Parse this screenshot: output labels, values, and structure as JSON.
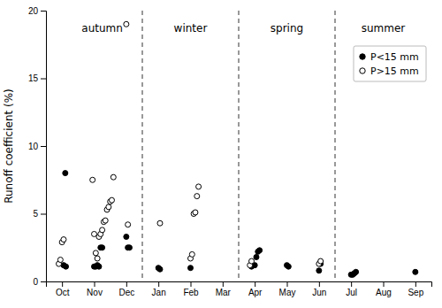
{
  "chart_data": {
    "type": "scatter",
    "ylabel": "Runoff coefficient (%)",
    "xlim": [
      -0.5,
      11.5
    ],
    "xticks": [
      {
        "value": 0,
        "label": "Oct"
      },
      {
        "value": 1,
        "label": "Nov"
      },
      {
        "value": 2,
        "label": "Dec"
      },
      {
        "value": 3,
        "label": "Jan"
      },
      {
        "value": 4,
        "label": "Feb"
      },
      {
        "value": 5,
        "label": "Mar"
      },
      {
        "value": 6,
        "label": "Apr"
      },
      {
        "value": 7,
        "label": "May"
      },
      {
        "value": 8,
        "label": "Jun"
      },
      {
        "value": 9,
        "label": "Jul"
      },
      {
        "value": 10,
        "label": "Aug"
      },
      {
        "value": 11,
        "label": "Sep"
      }
    ],
    "ylim": [
      0,
      20
    ],
    "yticks": [
      0,
      5,
      10,
      15,
      20
    ],
    "grid": false,
    "legend": "upper right",
    "series": [
      {
        "name": "P<15 mm",
        "color": "black",
        "marker": "circle",
        "x": [
          0.05,
          0.1,
          0.12,
          1.0,
          1.05,
          1.1,
          1.15,
          1.2,
          1.25,
          2.0,
          2.05,
          2.1,
          3.0,
          3.05,
          4.0,
          5.9,
          6.0,
          6.05,
          6.1,
          6.15,
          7.0,
          7.05,
          8.0,
          8.05,
          9.0,
          9.05,
          9.1,
          9.15,
          11.0
        ],
        "values": [
          1.2,
          8.0,
          1.1,
          1.1,
          1.1,
          1.2,
          1.1,
          2.5,
          2.5,
          3.3,
          2.5,
          2.5,
          1.0,
          0.9,
          1.0,
          1.1,
          1.2,
          1.8,
          2.2,
          2.3,
          1.2,
          1.1,
          0.8,
          1.3,
          0.5,
          0.5,
          0.6,
          0.7,
          0.7
        ]
      },
      {
        "name": "P>15 mm",
        "color": "black",
        "marker": "open-circle",
        "x": [
          -0.1,
          -0.05,
          0.0,
          0.05,
          0.95,
          1.0,
          1.05,
          1.1,
          1.15,
          1.2,
          1.25,
          1.3,
          1.35,
          1.4,
          1.45,
          1.5,
          1.55,
          1.6,
          2.0,
          2.05,
          3.05,
          4.0,
          4.05,
          4.1,
          4.15,
          4.2,
          4.25,
          5.85,
          5.9,
          8.0,
          8.05
        ],
        "values": [
          1.3,
          1.6,
          2.9,
          3.1,
          7.5,
          3.5,
          2.1,
          1.7,
          3.3,
          3.5,
          3.8,
          4.4,
          4.5,
          5.3,
          5.5,
          5.9,
          6.0,
          7.7,
          19.0,
          4.2,
          4.3,
          1.7,
          2.0,
          5.0,
          5.1,
          6.3,
          7.0,
          1.2,
          1.5,
          1.3,
          1.5
        ]
      }
    ],
    "vlines": [
      2.5,
      5.5,
      8.5
    ],
    "annotations": [
      {
        "text": "autumn",
        "x": 1.25,
        "y": 19.0
      },
      {
        "text": "winter",
        "x": 4.0,
        "y": 19.0
      },
      {
        "text": "spring",
        "x": 7.0,
        "y": 19.0
      },
      {
        "text": "summer",
        "x": 10.0,
        "y": 19.0
      }
    ]
  }
}
